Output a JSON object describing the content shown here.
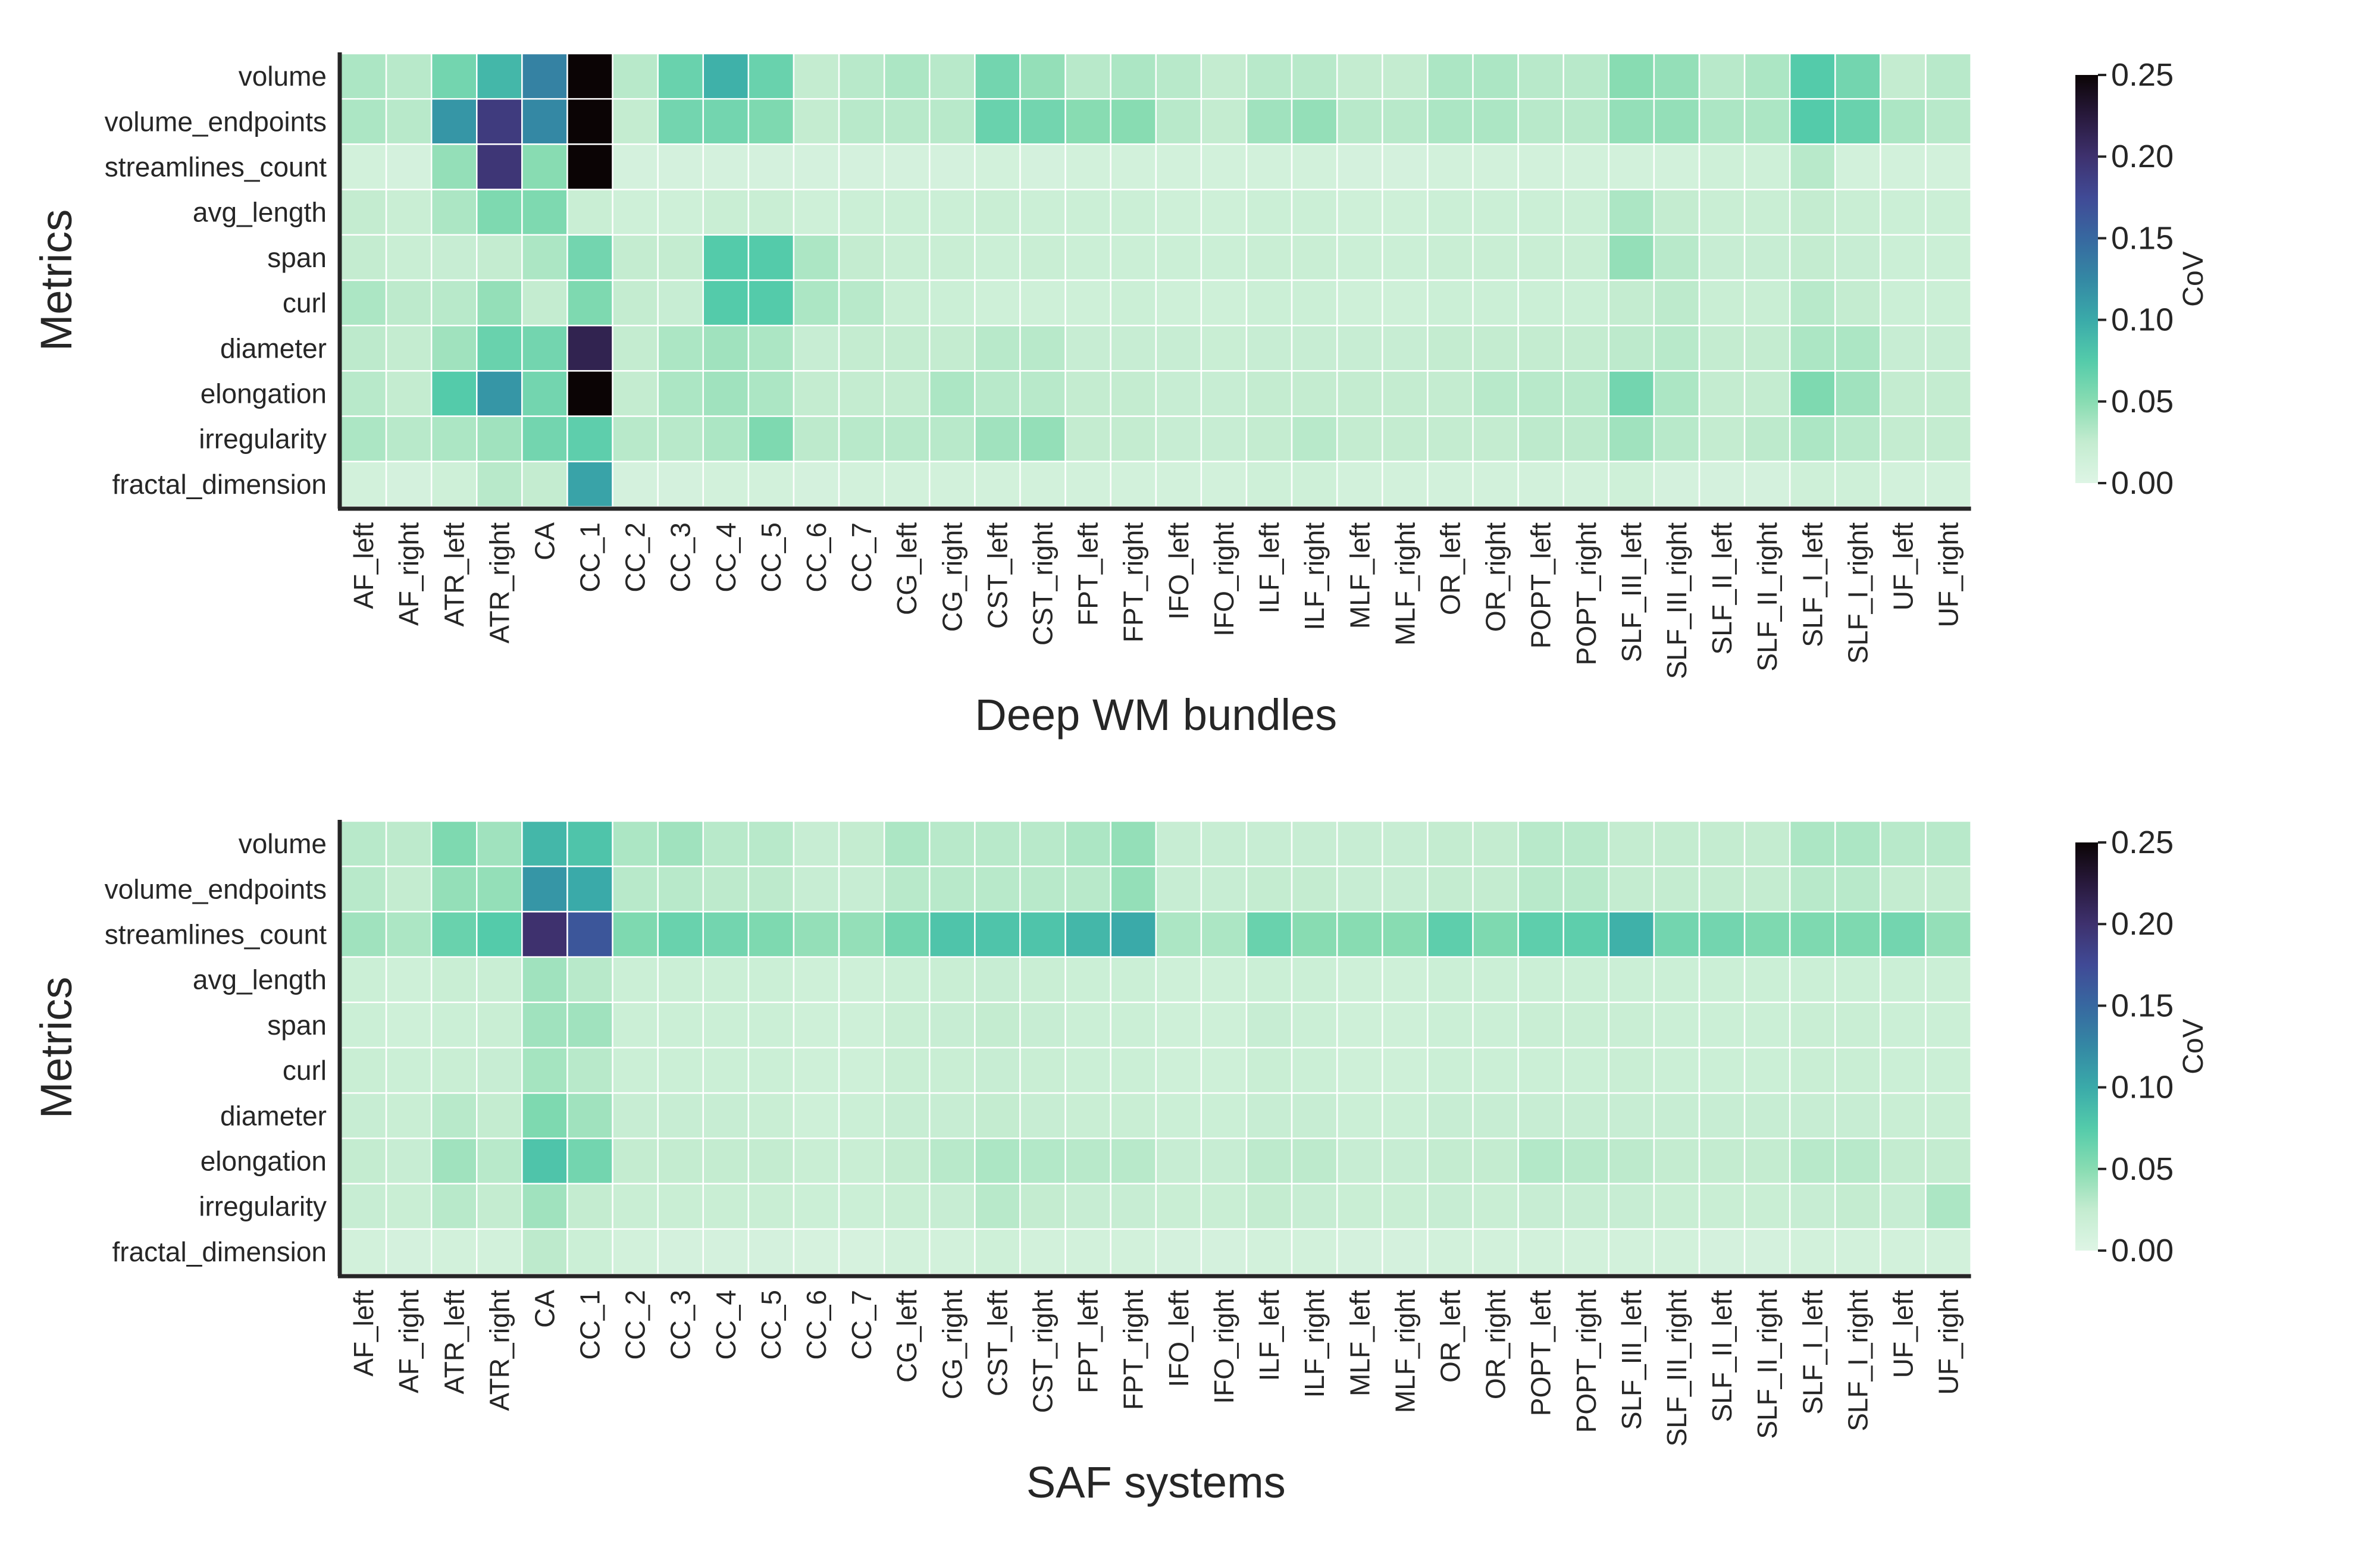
{
  "chart_data": [
    {
      "type": "heatmap",
      "id": "deep",
      "xlabel": "Deep WM bundles",
      "ylabel": "Metrics",
      "colorbar_label": "CoV",
      "vmin": 0.0,
      "vmax": 0.25,
      "colorbar_ticks": [
        "0.00",
        "0.05",
        "0.10",
        "0.15",
        "0.20",
        "0.25"
      ],
      "rows": [
        "volume",
        "volume_endpoints",
        "streamlines_count",
        "avg_length",
        "span",
        "curl",
        "diameter",
        "elongation",
        "irregularity",
        "fractal_dimension"
      ],
      "columns": [
        "AF_left",
        "AF_right",
        "ATR_left",
        "ATR_right",
        "CA",
        "CC_1",
        "CC_2",
        "CC_3",
        "CC_4",
        "CC_5",
        "CC_6",
        "CC_7",
        "CG_left",
        "CG_right",
        "CST_left",
        "CST_right",
        "FPT_left",
        "FPT_right",
        "IFO_left",
        "IFO_right",
        "ILF_left",
        "ILF_right",
        "MLF_left",
        "MLF_right",
        "OR_left",
        "OR_right",
        "POPT_left",
        "POPT_right",
        "SLF_III_left",
        "SLF_III_right",
        "SLF_II_left",
        "SLF_II_right",
        "SLF_I_left",
        "SLF_I_right",
        "UF_left",
        "UF_right"
      ],
      "values": [
        [
          0.035,
          0.03,
          0.06,
          0.09,
          0.13,
          0.25,
          0.03,
          0.065,
          0.095,
          0.065,
          0.025,
          0.03,
          0.035,
          0.03,
          0.06,
          0.045,
          0.03,
          0.035,
          0.03,
          0.025,
          0.03,
          0.03,
          0.025,
          0.025,
          0.035,
          0.035,
          0.03,
          0.03,
          0.05,
          0.045,
          0.03,
          0.035,
          0.075,
          0.06,
          0.025,
          0.03
        ],
        [
          0.035,
          0.03,
          0.115,
          0.19,
          0.125,
          0.25,
          0.025,
          0.06,
          0.06,
          0.055,
          0.025,
          0.03,
          0.03,
          0.03,
          0.065,
          0.06,
          0.05,
          0.05,
          0.03,
          0.025,
          0.04,
          0.045,
          0.03,
          0.03,
          0.035,
          0.035,
          0.03,
          0.03,
          0.045,
          0.045,
          0.035,
          0.035,
          0.075,
          0.065,
          0.035,
          0.03
        ],
        [
          0.012,
          0.01,
          0.045,
          0.195,
          0.05,
          0.25,
          0.01,
          0.01,
          0.01,
          0.01,
          0.01,
          0.01,
          0.01,
          0.01,
          0.012,
          0.01,
          0.012,
          0.012,
          0.012,
          0.012,
          0.012,
          0.012,
          0.01,
          0.01,
          0.012,
          0.012,
          0.012,
          0.012,
          0.012,
          0.012,
          0.015,
          0.015,
          0.03,
          0.012,
          0.012,
          0.012
        ],
        [
          0.025,
          0.02,
          0.035,
          0.055,
          0.055,
          0.02,
          0.015,
          0.015,
          0.02,
          0.02,
          0.015,
          0.018,
          0.018,
          0.018,
          0.02,
          0.018,
          0.018,
          0.018,
          0.015,
          0.015,
          0.018,
          0.018,
          0.015,
          0.015,
          0.018,
          0.018,
          0.018,
          0.018,
          0.035,
          0.025,
          0.02,
          0.02,
          0.025,
          0.02,
          0.018,
          0.018
        ],
        [
          0.025,
          0.02,
          0.022,
          0.025,
          0.035,
          0.06,
          0.025,
          0.025,
          0.075,
          0.075,
          0.035,
          0.025,
          0.02,
          0.02,
          0.018,
          0.02,
          0.018,
          0.018,
          0.018,
          0.018,
          0.02,
          0.02,
          0.018,
          0.018,
          0.02,
          0.02,
          0.02,
          0.02,
          0.045,
          0.03,
          0.022,
          0.022,
          0.025,
          0.022,
          0.018,
          0.018
        ],
        [
          0.035,
          0.028,
          0.03,
          0.045,
          0.025,
          0.055,
          0.025,
          0.022,
          0.075,
          0.075,
          0.035,
          0.03,
          0.02,
          0.018,
          0.015,
          0.015,
          0.015,
          0.018,
          0.015,
          0.015,
          0.018,
          0.018,
          0.015,
          0.015,
          0.018,
          0.018,
          0.018,
          0.018,
          0.025,
          0.028,
          0.02,
          0.02,
          0.03,
          0.025,
          0.018,
          0.018
        ],
        [
          0.028,
          0.025,
          0.04,
          0.065,
          0.06,
          0.215,
          0.025,
          0.035,
          0.04,
          0.035,
          0.022,
          0.025,
          0.025,
          0.025,
          0.03,
          0.03,
          0.022,
          0.022,
          0.022,
          0.02,
          0.022,
          0.022,
          0.022,
          0.022,
          0.025,
          0.025,
          0.025,
          0.025,
          0.028,
          0.03,
          0.025,
          0.025,
          0.035,
          0.035,
          0.022,
          0.022
        ],
        [
          0.03,
          0.025,
          0.075,
          0.115,
          0.06,
          0.25,
          0.025,
          0.035,
          0.04,
          0.035,
          0.025,
          0.025,
          0.025,
          0.035,
          0.03,
          0.03,
          0.025,
          0.025,
          0.022,
          0.022,
          0.025,
          0.025,
          0.025,
          0.025,
          0.025,
          0.03,
          0.03,
          0.03,
          0.06,
          0.035,
          0.025,
          0.025,
          0.055,
          0.04,
          0.025,
          0.025
        ],
        [
          0.035,
          0.03,
          0.035,
          0.04,
          0.06,
          0.07,
          0.03,
          0.03,
          0.035,
          0.055,
          0.028,
          0.03,
          0.03,
          0.03,
          0.04,
          0.045,
          0.025,
          0.025,
          0.022,
          0.022,
          0.025,
          0.03,
          0.025,
          0.025,
          0.025,
          0.025,
          0.028,
          0.028,
          0.04,
          0.03,
          0.025,
          0.028,
          0.035,
          0.03,
          0.025,
          0.025
        ],
        [
          0.012,
          0.01,
          0.015,
          0.03,
          0.025,
          0.105,
          0.01,
          0.01,
          0.012,
          0.012,
          0.01,
          0.012,
          0.012,
          0.012,
          0.012,
          0.012,
          0.012,
          0.012,
          0.012,
          0.012,
          0.015,
          0.015,
          0.012,
          0.012,
          0.012,
          0.012,
          0.012,
          0.012,
          0.015,
          0.01,
          0.01,
          0.01,
          0.015,
          0.015,
          0.012,
          0.012
        ]
      ]
    },
    {
      "type": "heatmap",
      "id": "saf",
      "xlabel": "SAF systems",
      "ylabel": "Metrics",
      "colorbar_label": "CoV",
      "vmin": 0.0,
      "vmax": 0.25,
      "colorbar_ticks": [
        "0.00",
        "0.05",
        "0.10",
        "0.15",
        "0.20",
        "0.25"
      ],
      "rows": [
        "volume",
        "volume_endpoints",
        "streamlines_count",
        "avg_length",
        "span",
        "curl",
        "diameter",
        "elongation",
        "irregularity",
        "fractal_dimension"
      ],
      "columns": [
        "AF_left",
        "AF_right",
        "ATR_left",
        "ATR_right",
        "CA",
        "CC_1",
        "CC_2",
        "CC_3",
        "CC_4",
        "CC_5",
        "CC_6",
        "CC_7",
        "CG_left",
        "CG_right",
        "CST_left",
        "CST_right",
        "FPT_left",
        "FPT_right",
        "IFO_left",
        "IFO_right",
        "ILF_left",
        "ILF_right",
        "MLF_left",
        "MLF_right",
        "OR_left",
        "OR_right",
        "POPT_left",
        "POPT_right",
        "SLF_III_left",
        "SLF_III_right",
        "SLF_II_left",
        "SLF_II_right",
        "SLF_I_left",
        "SLF_I_right",
        "UF_left",
        "UF_right"
      ],
      "values": [
        [
          0.03,
          0.028,
          0.055,
          0.04,
          0.09,
          0.08,
          0.035,
          0.04,
          0.03,
          0.03,
          0.022,
          0.025,
          0.035,
          0.03,
          0.03,
          0.03,
          0.035,
          0.045,
          0.022,
          0.022,
          0.022,
          0.022,
          0.022,
          0.022,
          0.025,
          0.025,
          0.03,
          0.03,
          0.025,
          0.025,
          0.025,
          0.025,
          0.035,
          0.035,
          0.03,
          0.03
        ],
        [
          0.03,
          0.025,
          0.045,
          0.045,
          0.115,
          0.1,
          0.03,
          0.03,
          0.028,
          0.028,
          0.022,
          0.022,
          0.03,
          0.03,
          0.03,
          0.03,
          0.03,
          0.045,
          0.022,
          0.022,
          0.025,
          0.025,
          0.022,
          0.022,
          0.025,
          0.025,
          0.03,
          0.03,
          0.025,
          0.025,
          0.025,
          0.025,
          0.03,
          0.03,
          0.025,
          0.025
        ],
        [
          0.04,
          0.035,
          0.065,
          0.075,
          0.2,
          0.165,
          0.055,
          0.065,
          0.06,
          0.055,
          0.045,
          0.045,
          0.06,
          0.08,
          0.08,
          0.08,
          0.09,
          0.1,
          0.035,
          0.035,
          0.065,
          0.05,
          0.05,
          0.05,
          0.07,
          0.055,
          0.07,
          0.07,
          0.095,
          0.06,
          0.06,
          0.055,
          0.055,
          0.055,
          0.06,
          0.045
        ],
        [
          0.018,
          0.015,
          0.02,
          0.02,
          0.04,
          0.03,
          0.018,
          0.018,
          0.018,
          0.018,
          0.015,
          0.015,
          0.018,
          0.02,
          0.022,
          0.02,
          0.018,
          0.018,
          0.015,
          0.015,
          0.018,
          0.018,
          0.015,
          0.015,
          0.018,
          0.018,
          0.018,
          0.018,
          0.018,
          0.018,
          0.018,
          0.018,
          0.018,
          0.018,
          0.018,
          0.018
        ],
        [
          0.018,
          0.015,
          0.018,
          0.02,
          0.04,
          0.04,
          0.018,
          0.018,
          0.018,
          0.018,
          0.015,
          0.015,
          0.02,
          0.022,
          0.025,
          0.022,
          0.018,
          0.018,
          0.015,
          0.015,
          0.022,
          0.018,
          0.015,
          0.015,
          0.018,
          0.018,
          0.02,
          0.02,
          0.02,
          0.018,
          0.018,
          0.018,
          0.02,
          0.02,
          0.018,
          0.018
        ],
        [
          0.02,
          0.018,
          0.02,
          0.022,
          0.038,
          0.03,
          0.018,
          0.018,
          0.018,
          0.018,
          0.015,
          0.015,
          0.02,
          0.02,
          0.022,
          0.02,
          0.018,
          0.018,
          0.015,
          0.015,
          0.02,
          0.018,
          0.015,
          0.015,
          0.018,
          0.018,
          0.018,
          0.018,
          0.02,
          0.018,
          0.018,
          0.018,
          0.02,
          0.02,
          0.018,
          0.018
        ],
        [
          0.022,
          0.02,
          0.03,
          0.025,
          0.055,
          0.04,
          0.022,
          0.022,
          0.022,
          0.02,
          0.015,
          0.018,
          0.022,
          0.022,
          0.025,
          0.022,
          0.02,
          0.02,
          0.018,
          0.018,
          0.022,
          0.022,
          0.018,
          0.018,
          0.022,
          0.022,
          0.022,
          0.022,
          0.022,
          0.022,
          0.022,
          0.022,
          0.022,
          0.022,
          0.02,
          0.02
        ],
        [
          0.025,
          0.022,
          0.04,
          0.03,
          0.08,
          0.06,
          0.025,
          0.025,
          0.025,
          0.025,
          0.02,
          0.02,
          0.025,
          0.03,
          0.035,
          0.032,
          0.03,
          0.03,
          0.022,
          0.022,
          0.028,
          0.028,
          0.022,
          0.022,
          0.025,
          0.025,
          0.032,
          0.03,
          0.028,
          0.025,
          0.025,
          0.025,
          0.03,
          0.03,
          0.025,
          0.025
        ],
        [
          0.022,
          0.02,
          0.03,
          0.025,
          0.04,
          0.025,
          0.02,
          0.02,
          0.02,
          0.02,
          0.018,
          0.018,
          0.02,
          0.022,
          0.03,
          0.025,
          0.022,
          0.022,
          0.02,
          0.02,
          0.025,
          0.022,
          0.02,
          0.02,
          0.022,
          0.02,
          0.022,
          0.022,
          0.022,
          0.02,
          0.02,
          0.02,
          0.022,
          0.025,
          0.022,
          0.035
        ],
        [
          0.012,
          0.01,
          0.012,
          0.012,
          0.028,
          0.018,
          0.012,
          0.01,
          0.01,
          0.01,
          0.008,
          0.008,
          0.012,
          0.012,
          0.015,
          0.012,
          0.012,
          0.012,
          0.01,
          0.01,
          0.012,
          0.012,
          0.01,
          0.01,
          0.012,
          0.012,
          0.012,
          0.012,
          0.012,
          0.012,
          0.01,
          0.01,
          0.012,
          0.012,
          0.012,
          0.012
        ]
      ]
    }
  ]
}
